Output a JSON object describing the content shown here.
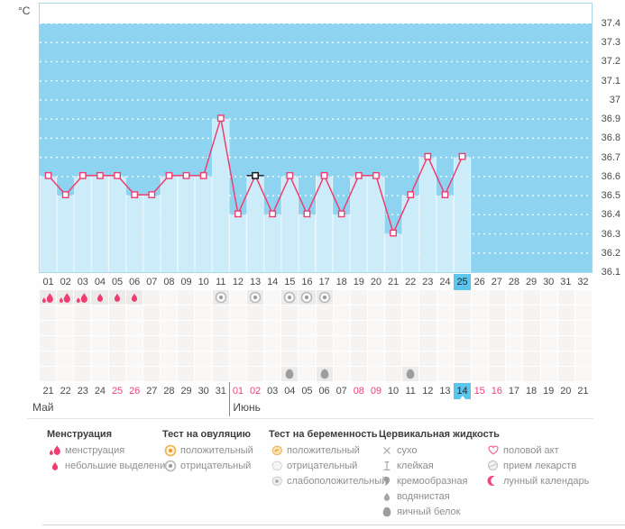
{
  "y_axis": {
    "unit": "°C",
    "ticks": [
      "37.4",
      "37.3",
      "37.2",
      "37.1",
      "37",
      "36.9",
      "36.8",
      "36.7",
      "36.6",
      "36.5",
      "36.4",
      "36.3",
      "36.2",
      "36.1"
    ]
  },
  "chart_data": {
    "type": "line",
    "ylabel": "°C",
    "ylim": [
      36.1,
      37.4
    ],
    "ytick_step": 0.1,
    "grid": "horizontal-dotted-white",
    "categories": [
      "01",
      "02",
      "03",
      "04",
      "05",
      "06",
      "07",
      "08",
      "09",
      "10",
      "11",
      "12",
      "13",
      "14",
      "15",
      "16",
      "17",
      "18",
      "19",
      "20",
      "21",
      "22",
      "23",
      "24",
      "25",
      "26",
      "27",
      "28",
      "29",
      "30",
      "31",
      "32"
    ],
    "series": [
      {
        "name": "temperature",
        "values": [
          36.6,
          36.5,
          36.6,
          36.6,
          36.6,
          36.5,
          36.5,
          36.6,
          36.6,
          36.6,
          36.9,
          36.4,
          36.6,
          36.4,
          36.6,
          36.4,
          36.6,
          36.4,
          36.6,
          36.6,
          36.3,
          36.5,
          36.7,
          36.5,
          36.7,
          null,
          null,
          null,
          null,
          null,
          null,
          null
        ]
      }
    ],
    "selected_day": 25,
    "hover_day": 13
  },
  "marks": {
    "rows": 6,
    "items": [
      {
        "type": "menstruation",
        "row": 0,
        "days": [
          1,
          2,
          3
        ]
      },
      {
        "type": "spotting",
        "row": 0,
        "days": [
          4,
          5,
          6
        ]
      },
      {
        "type": "ovulation-test-negative",
        "row": 0,
        "days": [
          11,
          13,
          15,
          16,
          17
        ]
      },
      {
        "type": "egg-white",
        "row": 5,
        "days": [
          15,
          17,
          22
        ]
      }
    ]
  },
  "calendar": {
    "months": [
      {
        "label": "Май",
        "dates": [
          "21",
          "22",
          "23",
          "24",
          "25",
          "26",
          "27",
          "28",
          "29",
          "30",
          "31"
        ],
        "weekend_dates": [
          "25",
          "26"
        ]
      },
      {
        "label": "Июнь",
        "dates": [
          "01",
          "02",
          "03",
          "04",
          "05",
          "06",
          "07",
          "08",
          "09",
          "10",
          "11",
          "12",
          "13",
          "14",
          "15",
          "16",
          "17",
          "18",
          "19",
          "20",
          "21"
        ],
        "weekend_dates": [
          "01",
          "02",
          "08",
          "09",
          "15",
          "16"
        ],
        "selected_date": "14"
      }
    ]
  },
  "legend": {
    "groups": [
      {
        "title": "Менструация",
        "items": [
          {
            "icon": "drops-2",
            "label": "менструация"
          },
          {
            "icon": "drop-1",
            "label": "небольшие выделения"
          }
        ]
      },
      {
        "title": "Тест на овуляцию",
        "items": [
          {
            "icon": "test-positive",
            "label": "положительный"
          },
          {
            "icon": "test-negative",
            "label": "отрицательный"
          }
        ]
      },
      {
        "title": "Тест на беременность",
        "items": [
          {
            "icon": "preg-positive",
            "label": "положительный"
          },
          {
            "icon": "preg-negative",
            "label": "отрицательный"
          },
          {
            "icon": "preg-weak",
            "label": "слабоположительный"
          }
        ]
      },
      {
        "title": "Цервикальная жидкость",
        "items": [
          {
            "icon": "dry",
            "label": "сухо"
          },
          {
            "icon": "sticky",
            "label": "клейкая"
          },
          {
            "icon": "creamy",
            "label": "кремообразная"
          },
          {
            "icon": "watery",
            "label": "водянистая"
          },
          {
            "icon": "egg-white",
            "label": "яичный белок"
          }
        ]
      },
      {
        "title": "",
        "items": [
          {
            "icon": "heart",
            "label": "половой акт"
          },
          {
            "icon": "pill",
            "label": "прием лекарств"
          },
          {
            "icon": "moon",
            "label": "лунный календарь"
          }
        ]
      }
    ]
  },
  "colors": {
    "chart_bg": "#8ed4f1",
    "bar": "#cdecf9",
    "line": "#ee3d71",
    "marker_hover": "#1a1a1a",
    "selected_day_bg": "#5bc5ee",
    "weekend": "#f0437c",
    "icon_pink": "#ee3d71",
    "icon_gray": "#9d9d9d",
    "positive_orange": "#f09a30"
  }
}
